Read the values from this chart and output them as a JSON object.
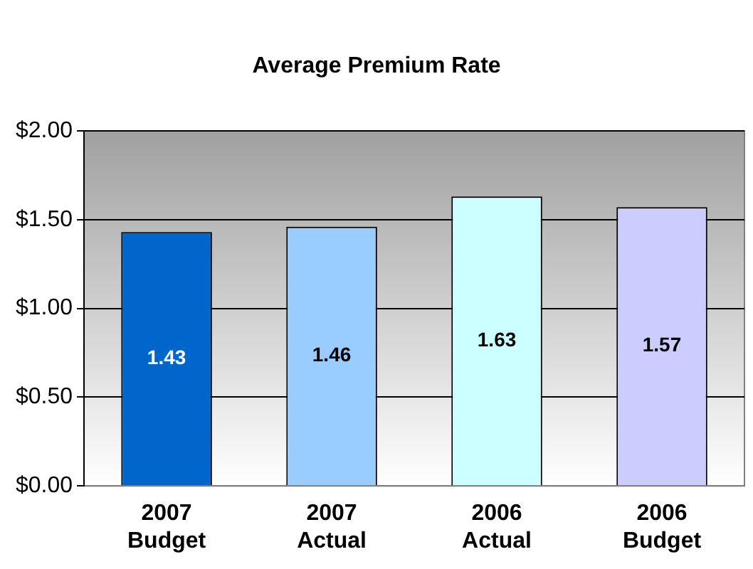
{
  "chart_data": {
    "type": "bar",
    "title": "Average Premium Rate",
    "categories": [
      "2007 Budget",
      "2007 Actual",
      "2006 Actual",
      "2006 Budget"
    ],
    "values": [
      1.43,
      1.46,
      1.63,
      1.57
    ],
    "colors": [
      "#0066cc",
      "#99ccff",
      "#ccffff",
      "#ccccff"
    ],
    "ylim": [
      0,
      2
    ],
    "yticks": [
      {
        "value": 0,
        "label": "$0.00"
      },
      {
        "value": 0.5,
        "label": "$0.50"
      },
      {
        "value": 1,
        "label": "$1.00"
      },
      {
        "value": 1.5,
        "label": "$1.50"
      },
      {
        "value": 2,
        "label": "$2.00"
      }
    ],
    "grid": "y",
    "data_labels": true
  }
}
